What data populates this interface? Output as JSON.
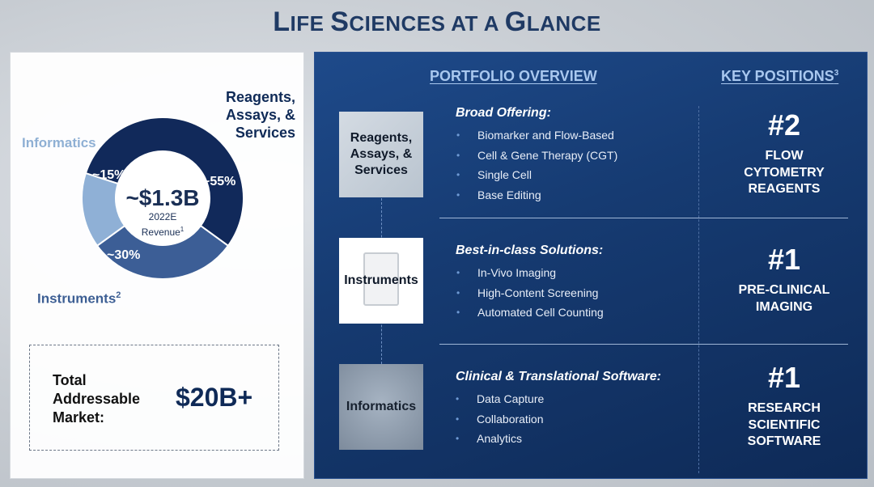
{
  "title": {
    "first_big": "L",
    "first_rest": "IFE ",
    "second_big": "S",
    "second_rest": "CIENCES AT A ",
    "third_big": "G",
    "third_rest": "LANCE"
  },
  "revenue_chart": {
    "center_value": "~$1.3B",
    "center_sub_line1": "2022E",
    "center_sub_line2": "Revenue",
    "center_sub_footnote": "1",
    "segments": [
      {
        "label_lines": [
          "Reagents,",
          "Assays, &",
          "Services"
        ],
        "pct_label": "~55%",
        "value": 55,
        "color": "#11295a"
      },
      {
        "label": "Instruments",
        "footnote": "2",
        "pct_label": "~30%",
        "value": 30,
        "color": "#3c5e96"
      },
      {
        "label": "Informatics",
        "pct_label": "~15%",
        "value": 15,
        "color": "#8fb0d6"
      }
    ]
  },
  "tam": {
    "label_lines": [
      "Total",
      "Addressable",
      "Market:"
    ],
    "value": "$20B+"
  },
  "portfolio": {
    "header": "PORTFOLIO OVERVIEW",
    "key_header": "KEY POSITIONS",
    "key_footnote": "3",
    "rows": [
      {
        "tile_lines": [
          "Reagents,",
          "Assays, &",
          "Services"
        ],
        "title": "Broad Offering:",
        "bullets": [
          "Biomarker and Flow-Based",
          "Cell & Gene Therapy (CGT)",
          "Single Cell",
          "Base Editing"
        ],
        "rank": "#2",
        "position_lines": [
          "FLOW",
          "CYTOMETRY",
          "REAGENTS"
        ]
      },
      {
        "tile_lines": [
          "Instruments"
        ],
        "title": "Best-in-class Solutions:",
        "bullets": [
          "In-Vivo Imaging",
          "High-Content Screening",
          "Automated Cell Counting"
        ],
        "rank": "#1",
        "position_lines": [
          "PRE-CLINICAL",
          "IMAGING"
        ]
      },
      {
        "tile_lines": [
          "Informatics"
        ],
        "title": "Clinical & Translational Software:",
        "bullets": [
          "Data Capture",
          "Collaboration",
          "Analytics"
        ],
        "rank": "#1",
        "position_lines": [
          "RESEARCH",
          "SCIENTIFIC",
          "SOFTWARE"
        ]
      }
    ],
    "bullet_glyph": "•"
  }
}
